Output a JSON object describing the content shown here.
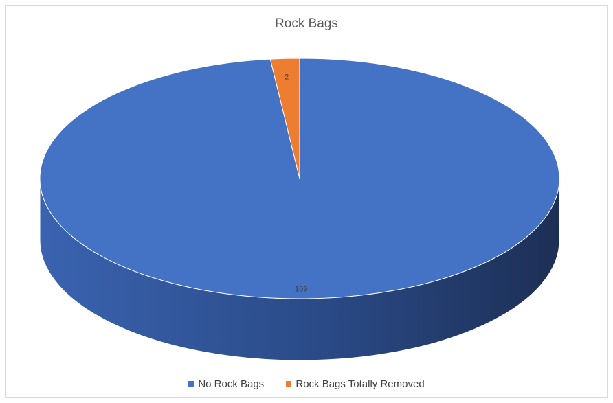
{
  "chart_data": {
    "type": "pie",
    "title": "Rock Bags",
    "categories": [
      "No Rock Bags",
      "Rock Bags Totally Removed"
    ],
    "values": [
      109,
      2
    ],
    "data_labels": [
      "109",
      "2"
    ],
    "colors": [
      "#4472c4",
      "#ed7d31"
    ],
    "style": "3d",
    "legend_position": "bottom"
  }
}
